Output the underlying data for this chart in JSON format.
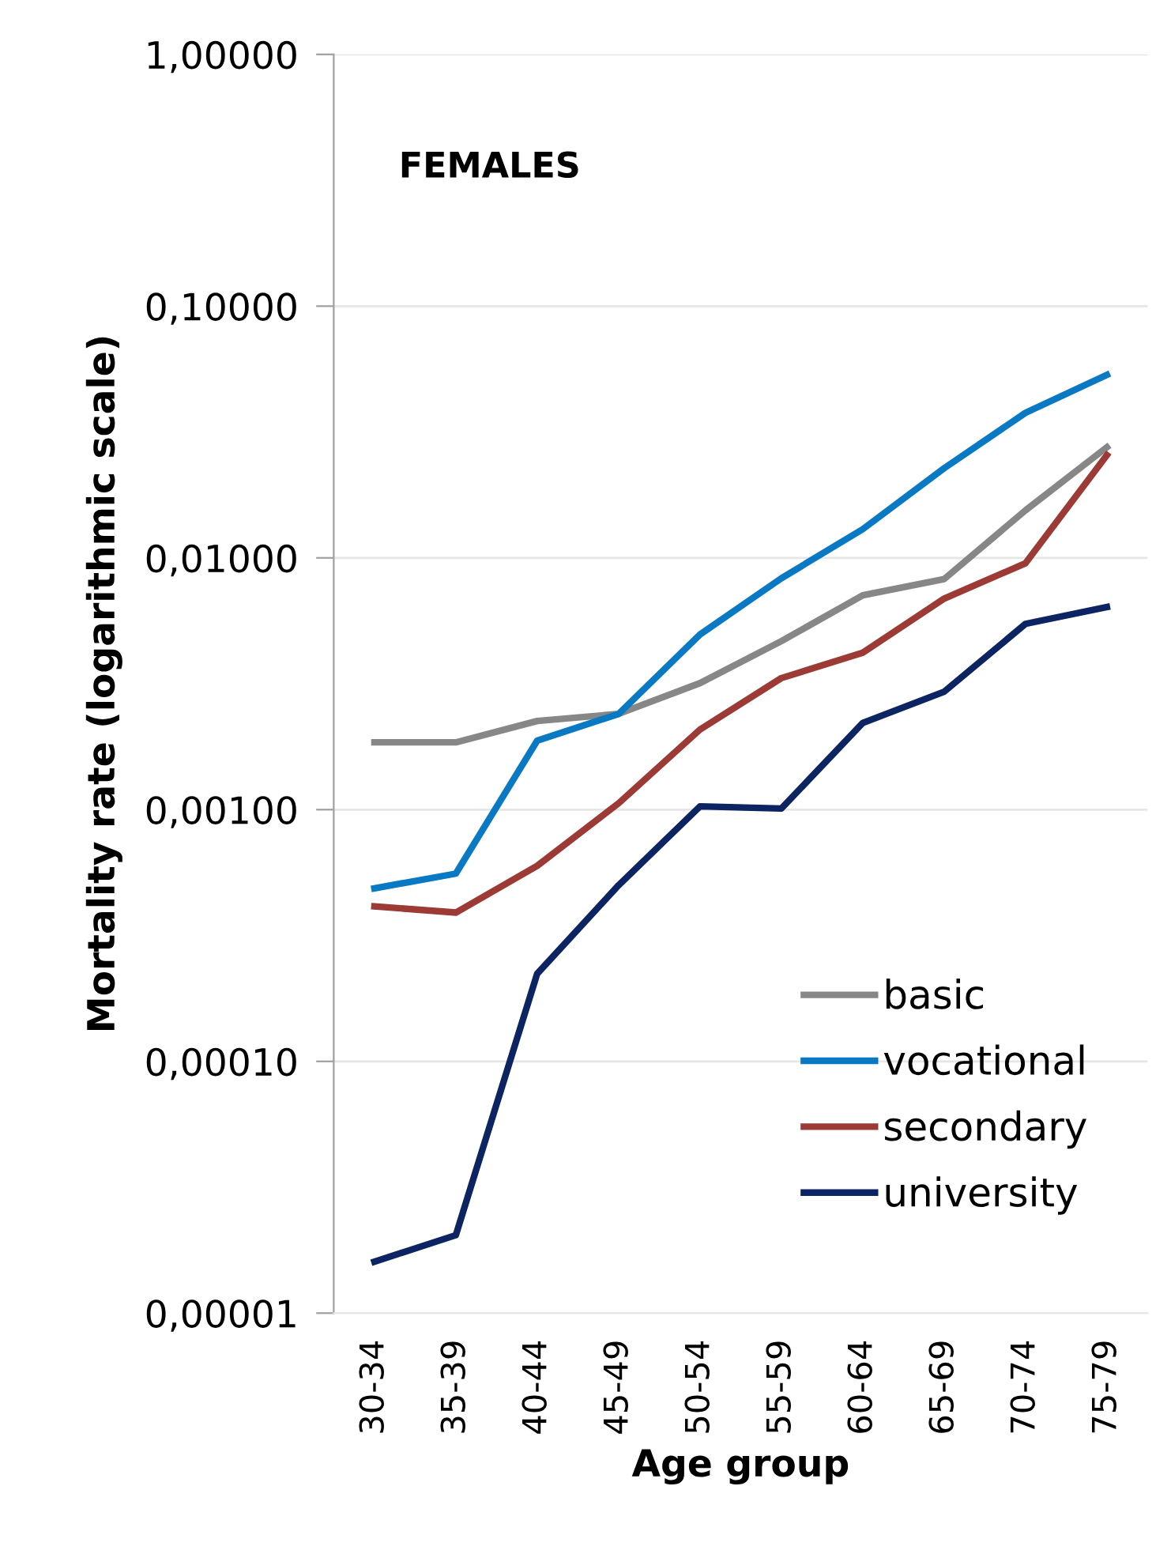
{
  "chart_data": {
    "type": "line",
    "xlabel": "Age group",
    "ylabel": "Mortality rate (logarithmic scale)",
    "annotations": [
      "FEMALES"
    ],
    "categories": [
      "30-34",
      "35-39",
      "40-44",
      "45-49",
      "50-54",
      "55-59",
      "60-64",
      "65-69",
      "70-74",
      "75-79"
    ],
    "series": [
      {
        "name": "basic",
        "color": "#878787",
        "values": [
          0.00185,
          0.00185,
          0.00225,
          0.0024,
          0.00318,
          0.00467,
          0.0071,
          0.00824,
          0.01545,
          0.0275
        ]
      },
      {
        "name": "vocational",
        "color": "#0a79c4",
        "values": [
          0.000487,
          0.000557,
          0.00188,
          0.0024,
          0.00496,
          0.0083,
          0.013,
          0.0227,
          0.0377,
          0.0533
        ]
      },
      {
        "name": "secondary",
        "color": "#9c3a36",
        "values": [
          0.000413,
          0.00039,
          0.000598,
          0.00106,
          0.00208,
          0.00333,
          0.0042,
          0.00689,
          0.00952,
          0.0256
        ]
      },
      {
        "name": "university",
        "color": "#0c2461",
        "values": [
          1.6e-05,
          2.04e-05,
          0.000223,
          0.000501,
          0.00103,
          0.00101,
          0.00221,
          0.00294,
          0.00547,
          0.00638
        ]
      }
    ],
    "log": "y",
    "ylim": [
      1e-05,
      1
    ],
    "yticks": [
      {
        "value": 1e-05,
        "label": "0,00001"
      },
      {
        "value": 0.0001,
        "label": "0,00010"
      },
      {
        "value": 0.001,
        "label": "0,00100"
      },
      {
        "value": 0.01,
        "label": "0,01000"
      },
      {
        "value": 0.1,
        "label": "0,10000"
      },
      {
        "value": 1,
        "label": "1,00000"
      }
    ],
    "grid": "y",
    "legend": "bottom right",
    "marker": "none",
    "line_style": "solid"
  }
}
